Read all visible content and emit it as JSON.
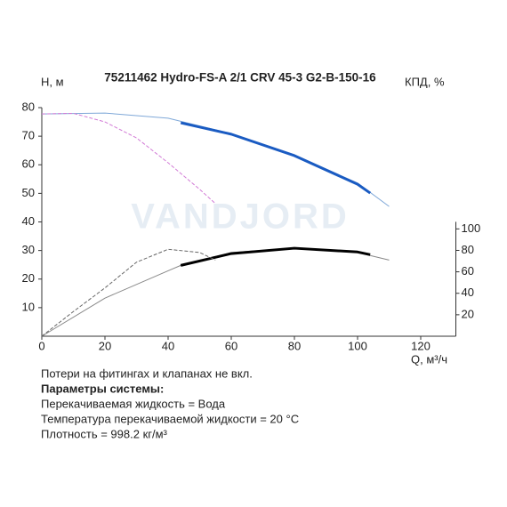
{
  "chart_data": {
    "type": "line",
    "title": "75211462 Hydro-FS-A 2/1 CRV 45-3 G2-B-150-16",
    "y_label": "H, м",
    "y2_label": "КПД, %",
    "x_label": "Q, м³/ч",
    "xlim": [
      0,
      130
    ],
    "xticks": [
      0,
      20,
      40,
      60,
      80,
      100,
      120
    ],
    "ylim": [
      0,
      80
    ],
    "yticks": [
      10,
      20,
      30,
      40,
      50,
      60,
      70,
      80
    ],
    "y2lim": [
      0,
      213
    ],
    "y2ticks": [
      20,
      40,
      60,
      80,
      100
    ],
    "grid": false,
    "series": [
      {
        "color": "#7fa8d8",
        "line_width": 1,
        "style": "solid",
        "x": [
          0,
          20,
          40,
          44,
          60,
          80,
          100,
          110
        ],
        "values": [
          77.8,
          78.1,
          76.3,
          75.2,
          70.9,
          63.4,
          53.6,
          45.4
        ]
      },
      {
        "color": "#1a5bc2",
        "line_width": 3,
        "style": "solid",
        "x": [
          44,
          60,
          80,
          100,
          104
        ],
        "values": [
          74.7,
          70.7,
          63.2,
          53.2,
          50.1
        ]
      },
      {
        "color": "#d27ad6",
        "line_width": 1,
        "style": "dashed",
        "x": [
          0,
          10,
          20,
          30,
          40,
          50,
          55
        ],
        "values": [
          77.8,
          78,
          75,
          69.4,
          60.7,
          51.4,
          46.4
        ]
      },
      {
        "color": "#888888",
        "line_width": 1,
        "style": "solid",
        "axis": "y2",
        "x": [
          0,
          20,
          40,
          44,
          60,
          80,
          100,
          110
        ],
        "values": [
          0,
          35.5,
          61,
          66,
          78,
          82,
          78,
          71
        ]
      },
      {
        "color": "#000000",
        "line_width": 3,
        "style": "solid",
        "axis": "y2",
        "x": [
          44,
          60,
          80,
          100,
          104
        ],
        "values": [
          66,
          77,
          82,
          78.5,
          76
        ]
      },
      {
        "color": "#666666",
        "line_width": 1,
        "style": "dashed",
        "axis": "y2",
        "x": [
          0,
          10,
          20,
          30,
          40,
          50,
          55
        ],
        "values": [
          0,
          23,
          45,
          69,
          81,
          78,
          71
        ]
      }
    ]
  },
  "watermark": "VANDJORD",
  "notes": [
    "Потери на фитингах и клапанах не вкл.",
    "Параметры системы:",
    "Перекачиваемая жидкость = Вода",
    "Температура перекачиваемой жидкости = 20 °C",
    "Плотность = 998.2 кг/м³"
  ]
}
